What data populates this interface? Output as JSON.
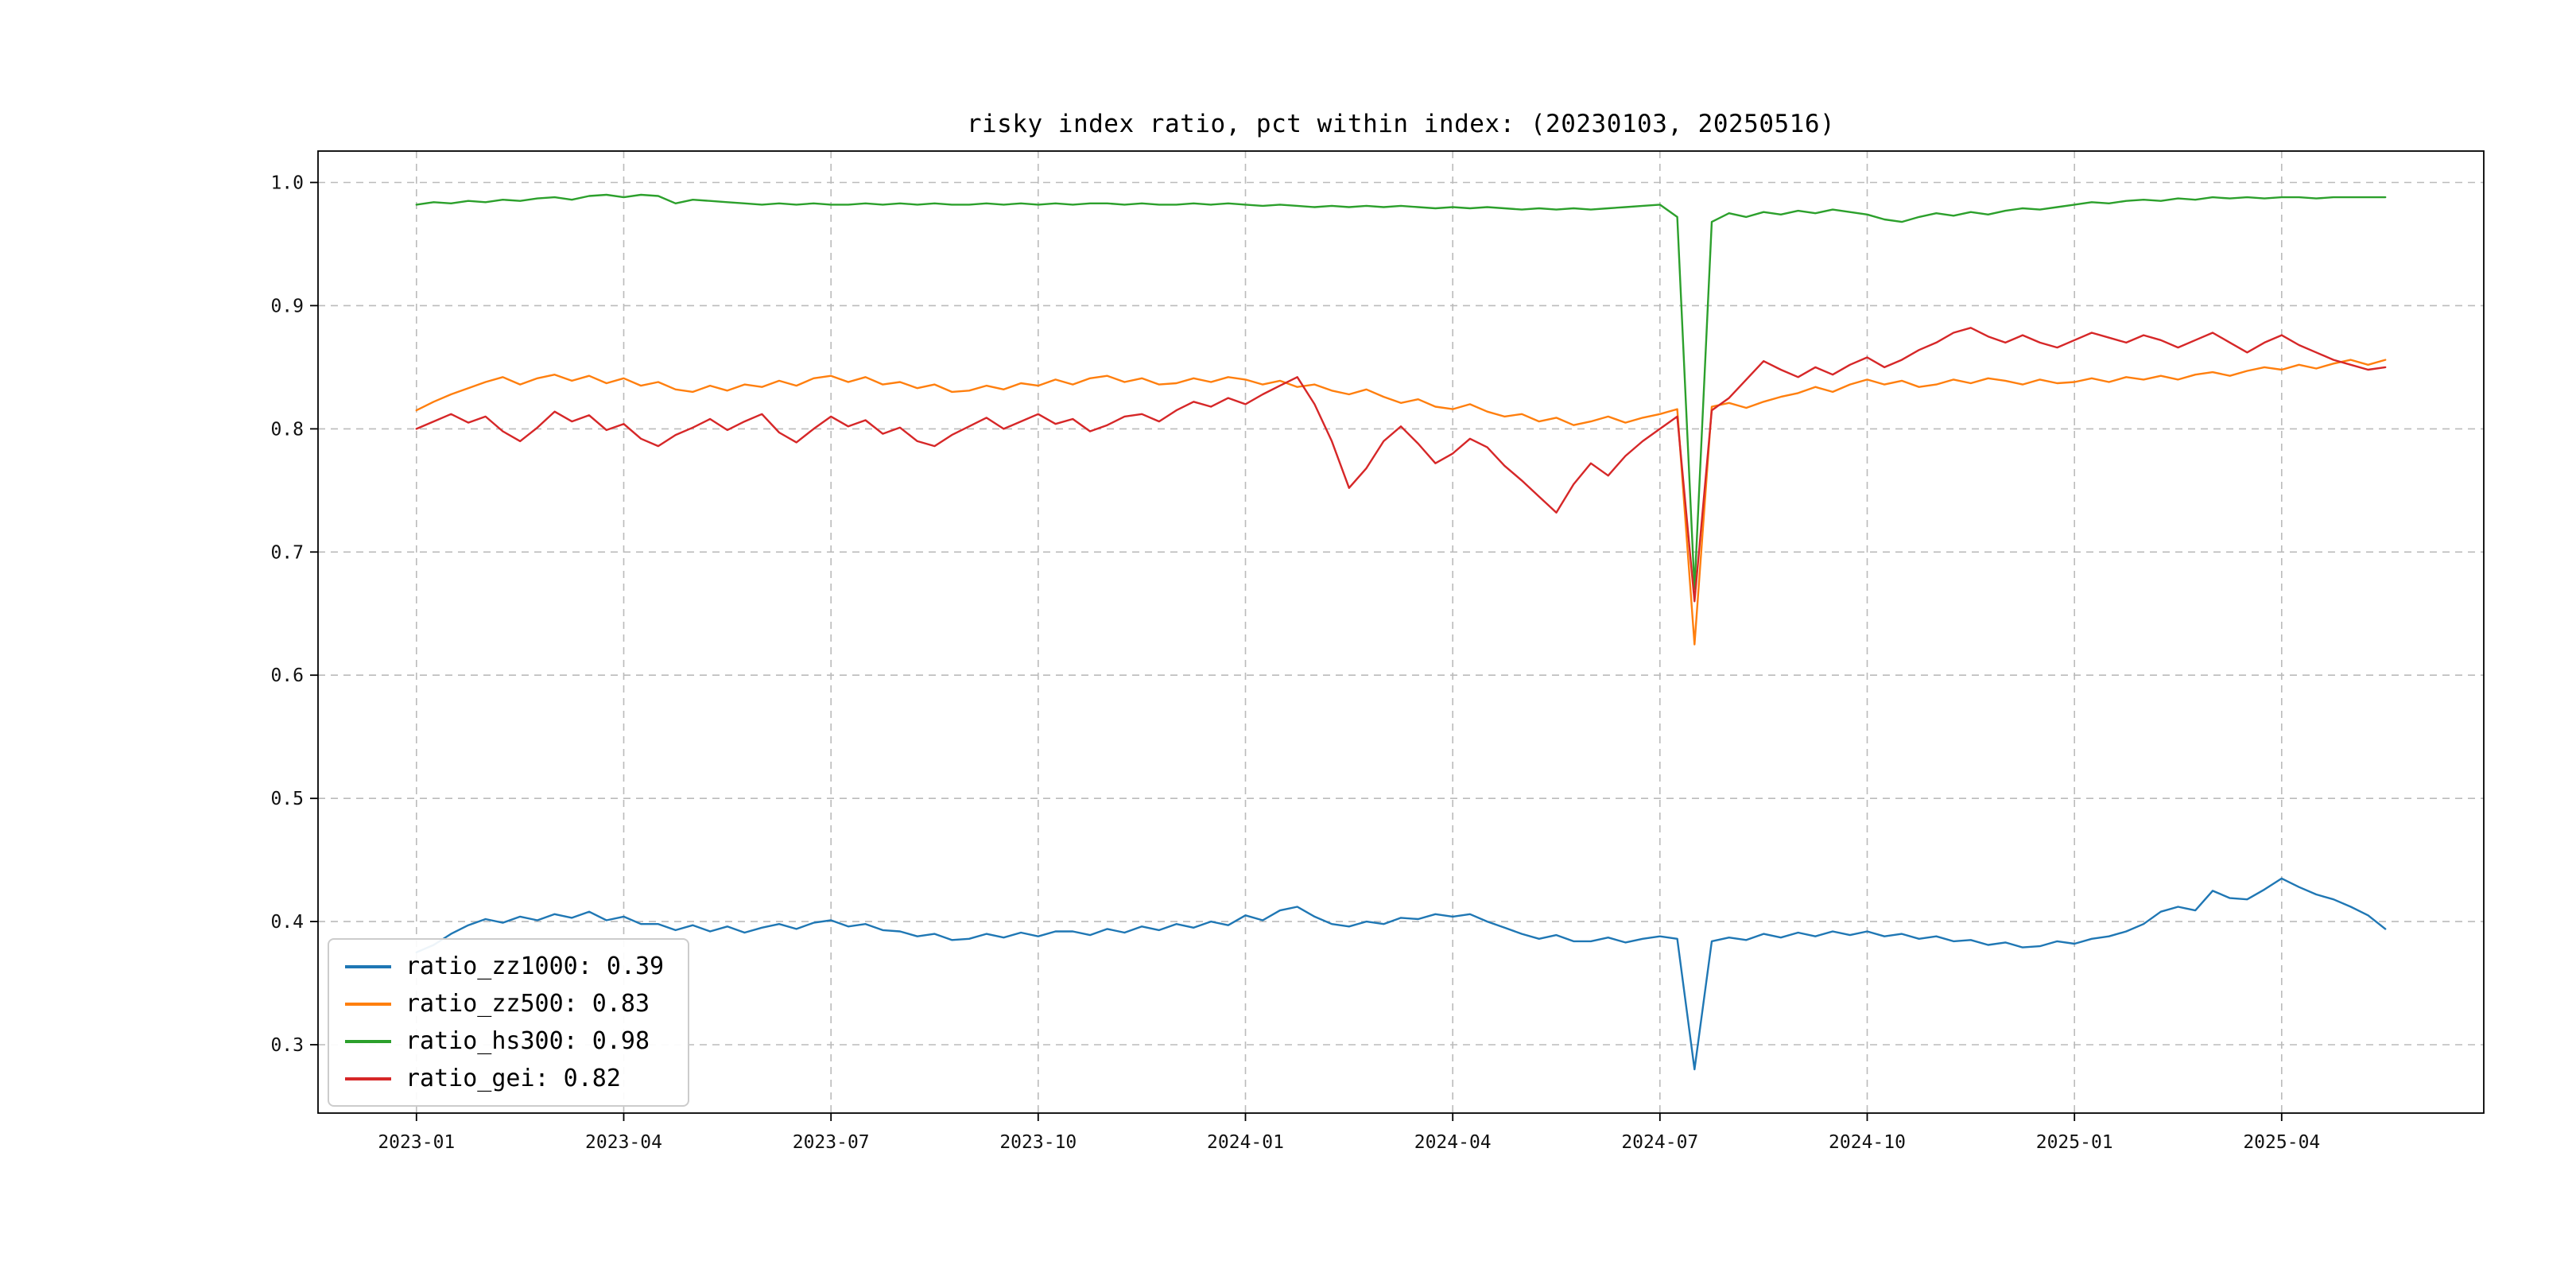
{
  "chart_data": {
    "type": "line",
    "title": "risky index ratio, pct within index: (20230103, 20250516)",
    "date_range": [
      "20230103",
      "20250516"
    ],
    "x_unit": "months since 2023-01",
    "x_start": 0,
    "x_step": 0.25,
    "xlim": [
      -1.425,
      29.925
    ],
    "ylim": [
      0.2445,
      1.0255
    ],
    "grid": "dashed",
    "legend_position": "lower left",
    "x_ticks": [
      {
        "value": 0,
        "label": "2023-01"
      },
      {
        "value": 3,
        "label": "2023-04"
      },
      {
        "value": 6,
        "label": "2023-07"
      },
      {
        "value": 9,
        "label": "2023-10"
      },
      {
        "value": 12,
        "label": "2024-01"
      },
      {
        "value": 15,
        "label": "2024-04"
      },
      {
        "value": 18,
        "label": "2024-07"
      },
      {
        "value": 21,
        "label": "2024-10"
      },
      {
        "value": 24,
        "label": "2025-01"
      },
      {
        "value": 27,
        "label": "2025-04"
      }
    ],
    "y_ticks": [
      {
        "value": 0.3,
        "label": "0.3"
      },
      {
        "value": 0.4,
        "label": "0.4"
      },
      {
        "value": 0.5,
        "label": "0.5"
      },
      {
        "value": 0.6,
        "label": "0.6"
      },
      {
        "value": 0.7,
        "label": "0.7"
      },
      {
        "value": 0.8,
        "label": "0.8"
      },
      {
        "value": 0.9,
        "label": "0.9"
      },
      {
        "value": 1.0,
        "label": "1.0"
      }
    ],
    "series": [
      {
        "name": "ratio_zz1000",
        "legend_label": "ratio_zz1000: 0.39",
        "color": "#1f77b4",
        "values": [
          0.375,
          0.381,
          0.39,
          0.397,
          0.402,
          0.399,
          0.404,
          0.401,
          0.406,
          0.403,
          0.408,
          0.401,
          0.404,
          0.398,
          0.398,
          0.393,
          0.397,
          0.392,
          0.396,
          0.391,
          0.395,
          0.398,
          0.394,
          0.399,
          0.401,
          0.396,
          0.398,
          0.393,
          0.392,
          0.388,
          0.39,
          0.385,
          0.386,
          0.39,
          0.387,
          0.391,
          0.388,
          0.392,
          0.392,
          0.389,
          0.394,
          0.391,
          0.396,
          0.393,
          0.398,
          0.395,
          0.4,
          0.397,
          0.405,
          0.401,
          0.409,
          0.412,
          0.404,
          0.398,
          0.396,
          0.4,
          0.398,
          0.403,
          0.402,
          0.406,
          0.404,
          0.406,
          0.4,
          0.395,
          0.39,
          0.386,
          0.389,
          0.384,
          0.384,
          0.387,
          0.383,
          0.386,
          0.388,
          0.386,
          0.28,
          0.384,
          0.387,
          0.385,
          0.39,
          0.387,
          0.391,
          0.388,
          0.392,
          0.389,
          0.392,
          0.388,
          0.39,
          0.386,
          0.388,
          0.384,
          0.385,
          0.381,
          0.383,
          0.379,
          0.38,
          0.384,
          0.382,
          0.386,
          0.388,
          0.392,
          0.398,
          0.408,
          0.412,
          0.409,
          0.425,
          0.419,
          0.418,
          0.426,
          0.435,
          0.428,
          0.422,
          0.418,
          0.412,
          0.405,
          0.394
        ]
      },
      {
        "name": "ratio_zz500",
        "legend_label": "ratio_zz500: 0.83",
        "color": "#ff7f0e",
        "values": [
          0.815,
          0.822,
          0.828,
          0.833,
          0.838,
          0.842,
          0.836,
          0.841,
          0.844,
          0.839,
          0.843,
          0.837,
          0.841,
          0.835,
          0.838,
          0.832,
          0.83,
          0.835,
          0.831,
          0.836,
          0.834,
          0.839,
          0.835,
          0.841,
          0.843,
          0.838,
          0.842,
          0.836,
          0.838,
          0.833,
          0.836,
          0.83,
          0.831,
          0.835,
          0.832,
          0.837,
          0.835,
          0.84,
          0.836,
          0.841,
          0.843,
          0.838,
          0.841,
          0.836,
          0.837,
          0.841,
          0.838,
          0.842,
          0.84,
          0.836,
          0.839,
          0.834,
          0.836,
          0.831,
          0.828,
          0.832,
          0.826,
          0.821,
          0.824,
          0.818,
          0.816,
          0.82,
          0.814,
          0.81,
          0.812,
          0.806,
          0.809,
          0.803,
          0.806,
          0.81,
          0.805,
          0.809,
          0.812,
          0.816,
          0.625,
          0.818,
          0.821,
          0.817,
          0.822,
          0.826,
          0.829,
          0.834,
          0.83,
          0.836,
          0.84,
          0.836,
          0.839,
          0.834,
          0.836,
          0.84,
          0.837,
          0.841,
          0.839,
          0.836,
          0.84,
          0.837,
          0.838,
          0.841,
          0.838,
          0.842,
          0.84,
          0.843,
          0.84,
          0.844,
          0.846,
          0.843,
          0.847,
          0.85,
          0.848,
          0.852,
          0.849,
          0.853,
          0.856,
          0.852,
          0.856
        ]
      },
      {
        "name": "ratio_hs300",
        "legend_label": "ratio_hs300: 0.98",
        "color": "#2ca02c",
        "values": [
          0.982,
          0.984,
          0.983,
          0.985,
          0.984,
          0.986,
          0.985,
          0.987,
          0.988,
          0.986,
          0.989,
          0.99,
          0.988,
          0.99,
          0.989,
          0.983,
          0.986,
          0.985,
          0.984,
          0.983,
          0.982,
          0.983,
          0.982,
          0.983,
          0.982,
          0.982,
          0.983,
          0.982,
          0.983,
          0.982,
          0.983,
          0.982,
          0.982,
          0.983,
          0.982,
          0.983,
          0.982,
          0.983,
          0.982,
          0.983,
          0.983,
          0.982,
          0.983,
          0.982,
          0.982,
          0.983,
          0.982,
          0.983,
          0.982,
          0.981,
          0.982,
          0.981,
          0.98,
          0.981,
          0.98,
          0.981,
          0.98,
          0.981,
          0.98,
          0.979,
          0.98,
          0.979,
          0.98,
          0.979,
          0.978,
          0.979,
          0.978,
          0.979,
          0.978,
          0.979,
          0.98,
          0.981,
          0.982,
          0.972,
          0.67,
          0.968,
          0.975,
          0.972,
          0.976,
          0.974,
          0.977,
          0.975,
          0.978,
          0.976,
          0.974,
          0.97,
          0.968,
          0.972,
          0.975,
          0.973,
          0.976,
          0.974,
          0.977,
          0.979,
          0.978,
          0.98,
          0.982,
          0.984,
          0.983,
          0.985,
          0.986,
          0.985,
          0.987,
          0.986,
          0.988,
          0.987,
          0.988,
          0.987,
          0.988,
          0.988,
          0.987,
          0.988,
          0.988,
          0.988,
          0.988
        ]
      },
      {
        "name": "ratio_gei",
        "legend_label": "ratio_gei: 0.82",
        "color": "#d62728",
        "values": [
          0.8,
          0.806,
          0.812,
          0.805,
          0.81,
          0.798,
          0.79,
          0.801,
          0.814,
          0.806,
          0.811,
          0.799,
          0.804,
          0.792,
          0.786,
          0.795,
          0.801,
          0.808,
          0.799,
          0.806,
          0.812,
          0.797,
          0.789,
          0.8,
          0.81,
          0.802,
          0.807,
          0.796,
          0.801,
          0.79,
          0.786,
          0.795,
          0.802,
          0.809,
          0.8,
          0.806,
          0.812,
          0.804,
          0.808,
          0.798,
          0.803,
          0.81,
          0.812,
          0.806,
          0.815,
          0.822,
          0.818,
          0.825,
          0.82,
          0.828,
          0.835,
          0.842,
          0.82,
          0.79,
          0.752,
          0.768,
          0.79,
          0.802,
          0.788,
          0.772,
          0.78,
          0.792,
          0.785,
          0.77,
          0.758,
          0.745,
          0.732,
          0.755,
          0.772,
          0.762,
          0.778,
          0.79,
          0.8,
          0.81,
          0.66,
          0.815,
          0.825,
          0.84,
          0.855,
          0.848,
          0.842,
          0.85,
          0.844,
          0.852,
          0.858,
          0.85,
          0.856,
          0.864,
          0.87,
          0.878,
          0.882,
          0.875,
          0.87,
          0.876,
          0.87,
          0.866,
          0.872,
          0.878,
          0.874,
          0.87,
          0.876,
          0.872,
          0.866,
          0.872,
          0.878,
          0.87,
          0.862,
          0.87,
          0.876,
          0.868,
          0.862,
          0.856,
          0.852,
          0.848,
          0.85
        ]
      }
    ]
  }
}
